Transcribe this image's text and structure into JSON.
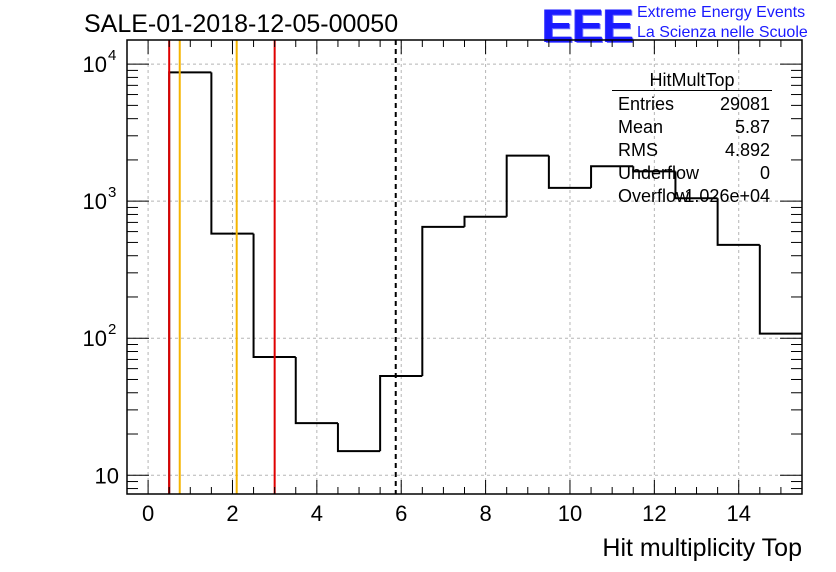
{
  "header": {
    "title": "SALE-01-2018-12-05-00050",
    "logo": "EEE",
    "tagline_1": "Extreme Energy Events",
    "tagline_2": "La Scienza nelle Scuole"
  },
  "stats": {
    "title": "HitMultTop",
    "rows": [
      {
        "label": "Entries",
        "value": "29081"
      },
      {
        "label": "Mean",
        "value": "5.87"
      },
      {
        "label": "RMS",
        "value": "4.892"
      },
      {
        "label": "Underflow",
        "value": "0"
      },
      {
        "label": "Overflow",
        "value": "1.026e+04"
      }
    ]
  },
  "chart_data": {
    "type": "histogram",
    "title": "SALE-01-2018-12-05-00050",
    "xlabel": "Hit multiplicity Top",
    "ylabel": "",
    "yscale": "log",
    "xlim": [
      -0.5,
      15.5
    ],
    "ylim": [
      7.3,
      15000
    ],
    "x_ticks": [
      0,
      2,
      4,
      6,
      8,
      10,
      12,
      14
    ],
    "y_tick_labels": [
      {
        "value": 10,
        "base": "10",
        "exp": ""
      },
      {
        "value": 100,
        "base": "10",
        "exp": "2"
      },
      {
        "value": 1000,
        "base": "10",
        "exp": "3"
      },
      {
        "value": 10000,
        "base": "10",
        "exp": "4"
      }
    ],
    "bin_width": 1,
    "bin_centers": [
      1,
      2,
      3,
      4,
      5,
      6,
      7,
      8,
      9,
      10,
      11,
      12,
      13,
      14,
      15
    ],
    "values": [
      8700,
      580,
      73,
      24,
      15,
      53,
      650,
      770,
      2150,
      1250,
      1800,
      1650,
      1050,
      480,
      108
    ],
    "vertical_lines": [
      {
        "x": 0.5,
        "color": "#e00000",
        "style": "solid"
      },
      {
        "x": 0.75,
        "color": "#f5b400",
        "style": "solid"
      },
      {
        "x": 2.1,
        "color": "#f5b400",
        "style": "solid"
      },
      {
        "x": 3.0,
        "color": "#e00000",
        "style": "solid"
      },
      {
        "x": 5.87,
        "color": "#000000",
        "style": "dashed"
      }
    ],
    "grid": true
  }
}
